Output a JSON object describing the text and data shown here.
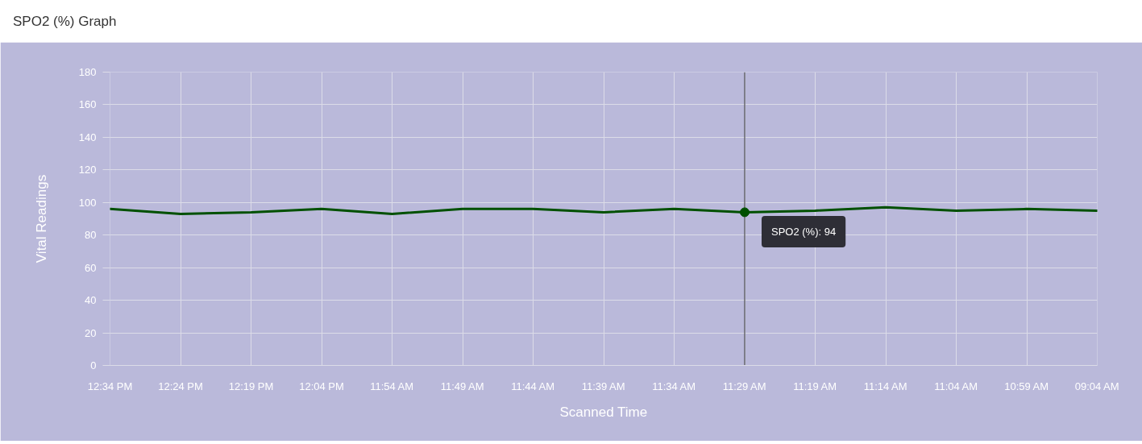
{
  "chart_data": {
    "type": "line",
    "title": "SPO2 (%) Graph",
    "xlabel": "Scanned Time",
    "ylabel": "Vital Readings",
    "categories": [
      "12:34 PM",
      "12:24 PM",
      "12:19 PM",
      "12:04 PM",
      "11:54 AM",
      "11:49 AM",
      "11:44 AM",
      "11:39 AM",
      "11:34 AM",
      "11:29 AM",
      "11:19 AM",
      "11:14 AM",
      "11:04 AM",
      "10:59 AM",
      "09:04 AM"
    ],
    "series": [
      {
        "color": "#005000",
        "values": [
          96,
          93,
          94,
          96,
          93,
          96,
          96,
          94,
          96,
          94,
          95,
          97,
          95,
          96,
          95
        ]
      }
    ],
    "ylim": [
      0,
      180
    ],
    "yticks": [
      0,
      20,
      40,
      60,
      80,
      100,
      120,
      140,
      160,
      180
    ],
    "grid": true,
    "line_style": "solid",
    "ref_lines": [
      {
        "axis": "x",
        "value": "11:29 AM",
        "color": "#333333"
      }
    ],
    "annotations": [
      {
        "text": "SPO2 (%): 94",
        "x": "11:29 AM",
        "y": 94
      }
    ]
  }
}
